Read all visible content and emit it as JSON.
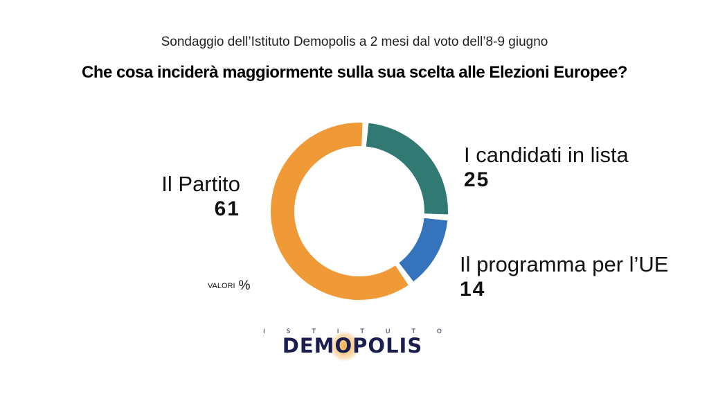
{
  "header": {
    "subtitle": "Sondaggio dell’Istituto Demopolis a 2 mesi dal voto dell’8-9 giugno",
    "title": "Che cosa inciderà maggiormente sulla sua scelta alle Elezioni Europee?"
  },
  "chart_data": {
    "type": "pie",
    "variant": "donut",
    "series": [
      {
        "name": "Il Partito",
        "value": 61,
        "label": "61",
        "color": "#f09a37"
      },
      {
        "name": "I candidati in lista",
        "value": 25,
        "label": "25",
        "color": "#317973"
      },
      {
        "name": "Il programma per l’UE",
        "value": 14,
        "label": "14",
        "color": "#3673bd"
      }
    ],
    "unit_label": "VALORI",
    "unit_symbol": "%"
  },
  "logo": {
    "top_letters": [
      "I",
      "S",
      "T",
      "I",
      "T",
      "U",
      "T",
      "O"
    ],
    "name": "DEMOPOLIS",
    "glow_color": "#f3ab44"
  }
}
